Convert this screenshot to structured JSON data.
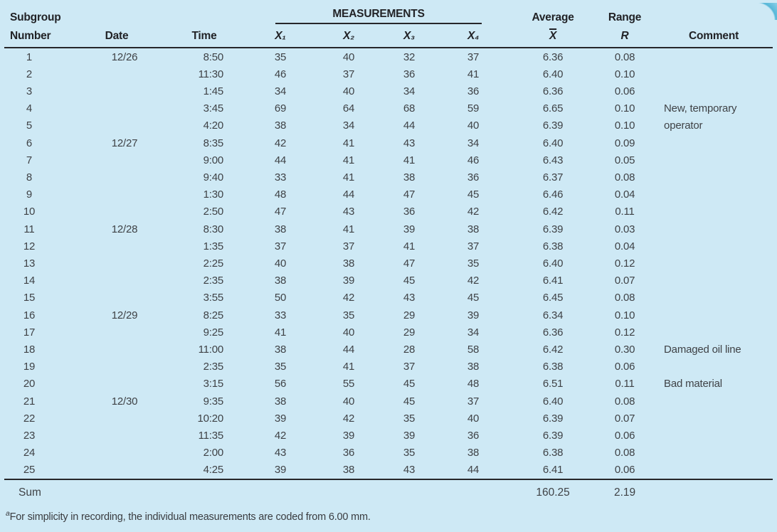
{
  "colors": {
    "background": "#cee9f5",
    "corner_accent": "#57b7d8",
    "text": "#3f4246",
    "header_text": "#212226",
    "rule": "#26262a"
  },
  "header": {
    "subgroup_line1": "Subgroup",
    "subgroup_line2": "Number",
    "date": "Date",
    "time": "Time",
    "measurements": "MEASUREMENTS",
    "x1": "X₁",
    "x2": "X₂",
    "x3": "X₃",
    "x4": "X₄",
    "average_line1": "Average",
    "average_line2": "X",
    "range_line1": "Range",
    "range_line2": "R",
    "comment": "Comment"
  },
  "rows": [
    {
      "n": "1",
      "date": "12/26",
      "time": "8:50",
      "x1": "35",
      "x2": "40",
      "x3": "32",
      "x4": "37",
      "avg": "6.36",
      "range": "0.08",
      "comment": ""
    },
    {
      "n": "2",
      "date": "",
      "time": "11:30",
      "x1": "46",
      "x2": "37",
      "x3": "36",
      "x4": "41",
      "avg": "6.40",
      "range": "0.10",
      "comment": ""
    },
    {
      "n": "3",
      "date": "",
      "time": "1:45",
      "x1": "34",
      "x2": "40",
      "x3": "34",
      "x4": "36",
      "avg": "6.36",
      "range": "0.06",
      "comment": ""
    },
    {
      "n": "4",
      "date": "",
      "time": "3:45",
      "x1": "69",
      "x2": "64",
      "x3": "68",
      "x4": "59",
      "avg": "6.65",
      "range": "0.10",
      "comment": "New, temporary"
    },
    {
      "n": "5",
      "date": "",
      "time": "4:20",
      "x1": "38",
      "x2": "34",
      "x3": "44",
      "x4": "40",
      "avg": "6.39",
      "range": "0.10",
      "comment": "operator"
    },
    {
      "n": "6",
      "date": "12/27",
      "time": "8:35",
      "x1": "42",
      "x2": "41",
      "x3": "43",
      "x4": "34",
      "avg": "6.40",
      "range": "0.09",
      "comment": ""
    },
    {
      "n": "7",
      "date": "",
      "time": "9:00",
      "x1": "44",
      "x2": "41",
      "x3": "41",
      "x4": "46",
      "avg": "6.43",
      "range": "0.05",
      "comment": ""
    },
    {
      "n": "8",
      "date": "",
      "time": "9:40",
      "x1": "33",
      "x2": "41",
      "x3": "38",
      "x4": "36",
      "avg": "6.37",
      "range": "0.08",
      "comment": ""
    },
    {
      "n": "9",
      "date": "",
      "time": "1:30",
      "x1": "48",
      "x2": "44",
      "x3": "47",
      "x4": "45",
      "avg": "6.46",
      "range": "0.04",
      "comment": ""
    },
    {
      "n": "10",
      "date": "",
      "time": "2:50",
      "x1": "47",
      "x2": "43",
      "x3": "36",
      "x4": "42",
      "avg": "6.42",
      "range": "0.11",
      "comment": ""
    },
    {
      "n": "11",
      "date": "12/28",
      "time": "8:30",
      "x1": "38",
      "x2": "41",
      "x3": "39",
      "x4": "38",
      "avg": "6.39",
      "range": "0.03",
      "comment": ""
    },
    {
      "n": "12",
      "date": "",
      "time": "1:35",
      "x1": "37",
      "x2": "37",
      "x3": "41",
      "x4": "37",
      "avg": "6.38",
      "range": "0.04",
      "comment": ""
    },
    {
      "n": "13",
      "date": "",
      "time": "2:25",
      "x1": "40",
      "x2": "38",
      "x3": "47",
      "x4": "35",
      "avg": "6.40",
      "range": "0.12",
      "comment": ""
    },
    {
      "n": "14",
      "date": "",
      "time": "2:35",
      "x1": "38",
      "x2": "39",
      "x3": "45",
      "x4": "42",
      "avg": "6.41",
      "range": "0.07",
      "comment": ""
    },
    {
      "n": "15",
      "date": "",
      "time": "3:55",
      "x1": "50",
      "x2": "42",
      "x3": "43",
      "x4": "45",
      "avg": "6.45",
      "range": "0.08",
      "comment": ""
    },
    {
      "n": "16",
      "date": "12/29",
      "time": "8:25",
      "x1": "33",
      "x2": "35",
      "x3": "29",
      "x4": "39",
      "avg": "6.34",
      "range": "0.10",
      "comment": ""
    },
    {
      "n": "17",
      "date": "",
      "time": "9:25",
      "x1": "41",
      "x2": "40",
      "x3": "29",
      "x4": "34",
      "avg": "6.36",
      "range": "0.12",
      "comment": ""
    },
    {
      "n": "18",
      "date": "",
      "time": "11:00",
      "x1": "38",
      "x2": "44",
      "x3": "28",
      "x4": "58",
      "avg": "6.42",
      "range": "0.30",
      "comment": "Damaged oil line"
    },
    {
      "n": "19",
      "date": "",
      "time": "2:35",
      "x1": "35",
      "x2": "41",
      "x3": "37",
      "x4": "38",
      "avg": "6.38",
      "range": "0.06",
      "comment": ""
    },
    {
      "n": "20",
      "date": "",
      "time": "3:15",
      "x1": "56",
      "x2": "55",
      "x3": "45",
      "x4": "48",
      "avg": "6.51",
      "range": "0.11",
      "comment": "Bad material"
    },
    {
      "n": "21",
      "date": "12/30",
      "time": "9:35",
      "x1": "38",
      "x2": "40",
      "x3": "45",
      "x4": "37",
      "avg": "6.40",
      "range": "0.08",
      "comment": ""
    },
    {
      "n": "22",
      "date": "",
      "time": "10:20",
      "x1": "39",
      "x2": "42",
      "x3": "35",
      "x4": "40",
      "avg": "6.39",
      "range": "0.07",
      "comment": ""
    },
    {
      "n": "23",
      "date": "",
      "time": "11:35",
      "x1": "42",
      "x2": "39",
      "x3": "39",
      "x4": "36",
      "avg": "6.39",
      "range": "0.06",
      "comment": ""
    },
    {
      "n": "24",
      "date": "",
      "time": "2:00",
      "x1": "43",
      "x2": "36",
      "x3": "35",
      "x4": "38",
      "avg": "6.38",
      "range": "0.08",
      "comment": ""
    },
    {
      "n": "25",
      "date": "",
      "time": "4:25",
      "x1": "39",
      "x2": "38",
      "x3": "43",
      "x4": "44",
      "avg": "6.41",
      "range": "0.06",
      "comment": ""
    }
  ],
  "sum": {
    "label": "Sum",
    "avg": "160.25",
    "range": "2.19"
  },
  "footnote": {
    "marker": "a",
    "text": "For simplicity in recording, the individual measurements are coded from 6.00 mm."
  }
}
